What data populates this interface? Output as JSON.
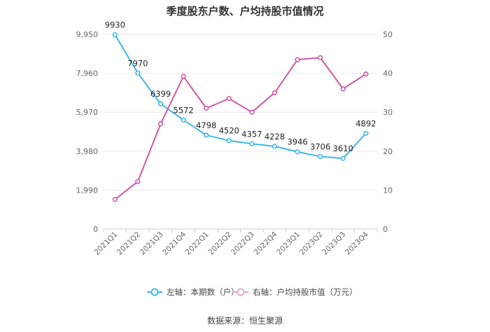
{
  "chart_data": {
    "type": "line",
    "title": "季度股东户数、户均持股市值情况",
    "categories": [
      "2021Q1",
      "2021Q2",
      "2021Q3",
      "2021Q4",
      "2022Q1",
      "2022Q2",
      "2022Q3",
      "2022Q4",
      "2023Q1",
      "2023Q2",
      "2023Q3",
      "2023Q4"
    ],
    "left_axis": {
      "ticks": [
        "0",
        "1,990",
        "3,980",
        "5,970",
        "7,960",
        "9,950"
      ],
      "ylim": [
        0,
        9950
      ]
    },
    "right_axis": {
      "ticks": [
        "0",
        "10",
        "20",
        "30",
        "40",
        "50"
      ],
      "ylim": [
        0,
        50
      ]
    },
    "series": [
      {
        "name": "左轴：本期数（户）",
        "axis": "left",
        "color": "#3db8e8",
        "values": [
          9930,
          7970,
          6399,
          5572,
          4798,
          4520,
          4357,
          4228,
          3946,
          3706,
          3610,
          4892
        ],
        "labels": [
          "9930",
          "7970",
          "6399",
          "5572",
          "4798",
          "4520",
          "4357",
          "4228",
          "3946",
          "3706",
          "3610",
          "4892"
        ]
      },
      {
        "name": "右轴：户均持股市值（万元）",
        "axis": "right",
        "color": "#d2579f",
        "values": [
          7.6,
          12.2,
          27.0,
          39.2,
          31.0,
          33.5,
          30.0,
          35.0,
          43.5,
          44.0,
          36.0,
          39.8
        ]
      }
    ],
    "source": "数据来源：恒生聚源"
  }
}
